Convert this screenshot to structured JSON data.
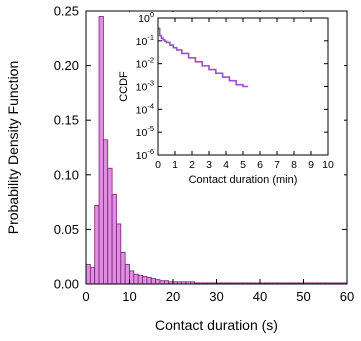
{
  "chart_data": [
    {
      "type": "bar",
      "xlabel": "Contact duration (s)",
      "ylabel": "Probability Density Function",
      "xlim": [
        0,
        60
      ],
      "ylim": [
        0,
        0.25
      ],
      "x_ticks": [
        "0",
        "10",
        "20",
        "30",
        "40",
        "50",
        "60"
      ],
      "y_ticks": [
        "0.00",
        "0.05",
        "0.10",
        "0.15",
        "0.20",
        "0.25"
      ],
      "bin_width": 1,
      "bin_start": 0,
      "values": [
        0.018,
        0.015,
        0.072,
        0.245,
        0.132,
        0.106,
        0.082,
        0.055,
        0.029,
        0.018,
        0.012,
        0.009,
        0.008,
        0.007,
        0.006,
        0.005,
        0.004,
        0.003,
        0.003,
        0.002,
        0.002,
        0.002,
        0.002,
        0.002,
        0.002,
        0.001,
        0.001,
        0.001,
        0.001,
        0.001,
        0.001,
        0.001,
        0.001,
        0.001,
        0.001,
        0.001,
        0.001,
        0.001,
        0.001,
        0.001,
        0.001,
        0.001,
        0.001,
        0.001,
        0.001,
        0.001,
        0.001,
        0.001,
        0.001,
        0.001,
        0.001,
        0.001,
        0.001,
        0.001,
        0.001,
        0.001,
        0.001,
        0.001,
        0.001,
        0.001
      ],
      "bar_color": "#e08ee0",
      "bar_edge_color": "#7a1f7a",
      "grid": false
    },
    {
      "type": "line",
      "inset": true,
      "xlabel": "Contact duration (min)",
      "ylabel": "CCDF",
      "xlim": [
        0,
        10
      ],
      "ylim_log10": [
        -6,
        0
      ],
      "y_scale": "log",
      "x_ticks": [
        "0",
        "1",
        "2",
        "3",
        "4",
        "5",
        "6",
        "7",
        "8",
        "9",
        "10"
      ],
      "y_ticks": [
        "10",
        "10",
        "10",
        "10",
        "10",
        "10",
        "10"
      ],
      "y_tick_exponents": [
        "0",
        "-1",
        "-2",
        "-3",
        "-4",
        "-5",
        "-6"
      ],
      "x": [
        0.02,
        0.1,
        0.2,
        0.3,
        0.4,
        0.5,
        0.7,
        0.9,
        1.1,
        1.4,
        1.8,
        2.2,
        2.6,
        3.0,
        3.4,
        3.8,
        4.2,
        4.6,
        5.0,
        5.3
      ],
      "y": [
        0.35,
        0.17,
        0.13,
        0.11,
        0.095,
        0.085,
        0.065,
        0.05,
        0.04,
        0.028,
        0.018,
        0.012,
        0.008,
        0.0055,
        0.0038,
        0.0026,
        0.0018,
        0.0012,
        0.001,
        0.001
      ],
      "line_color": "#9c4fd0",
      "grid": false
    }
  ]
}
